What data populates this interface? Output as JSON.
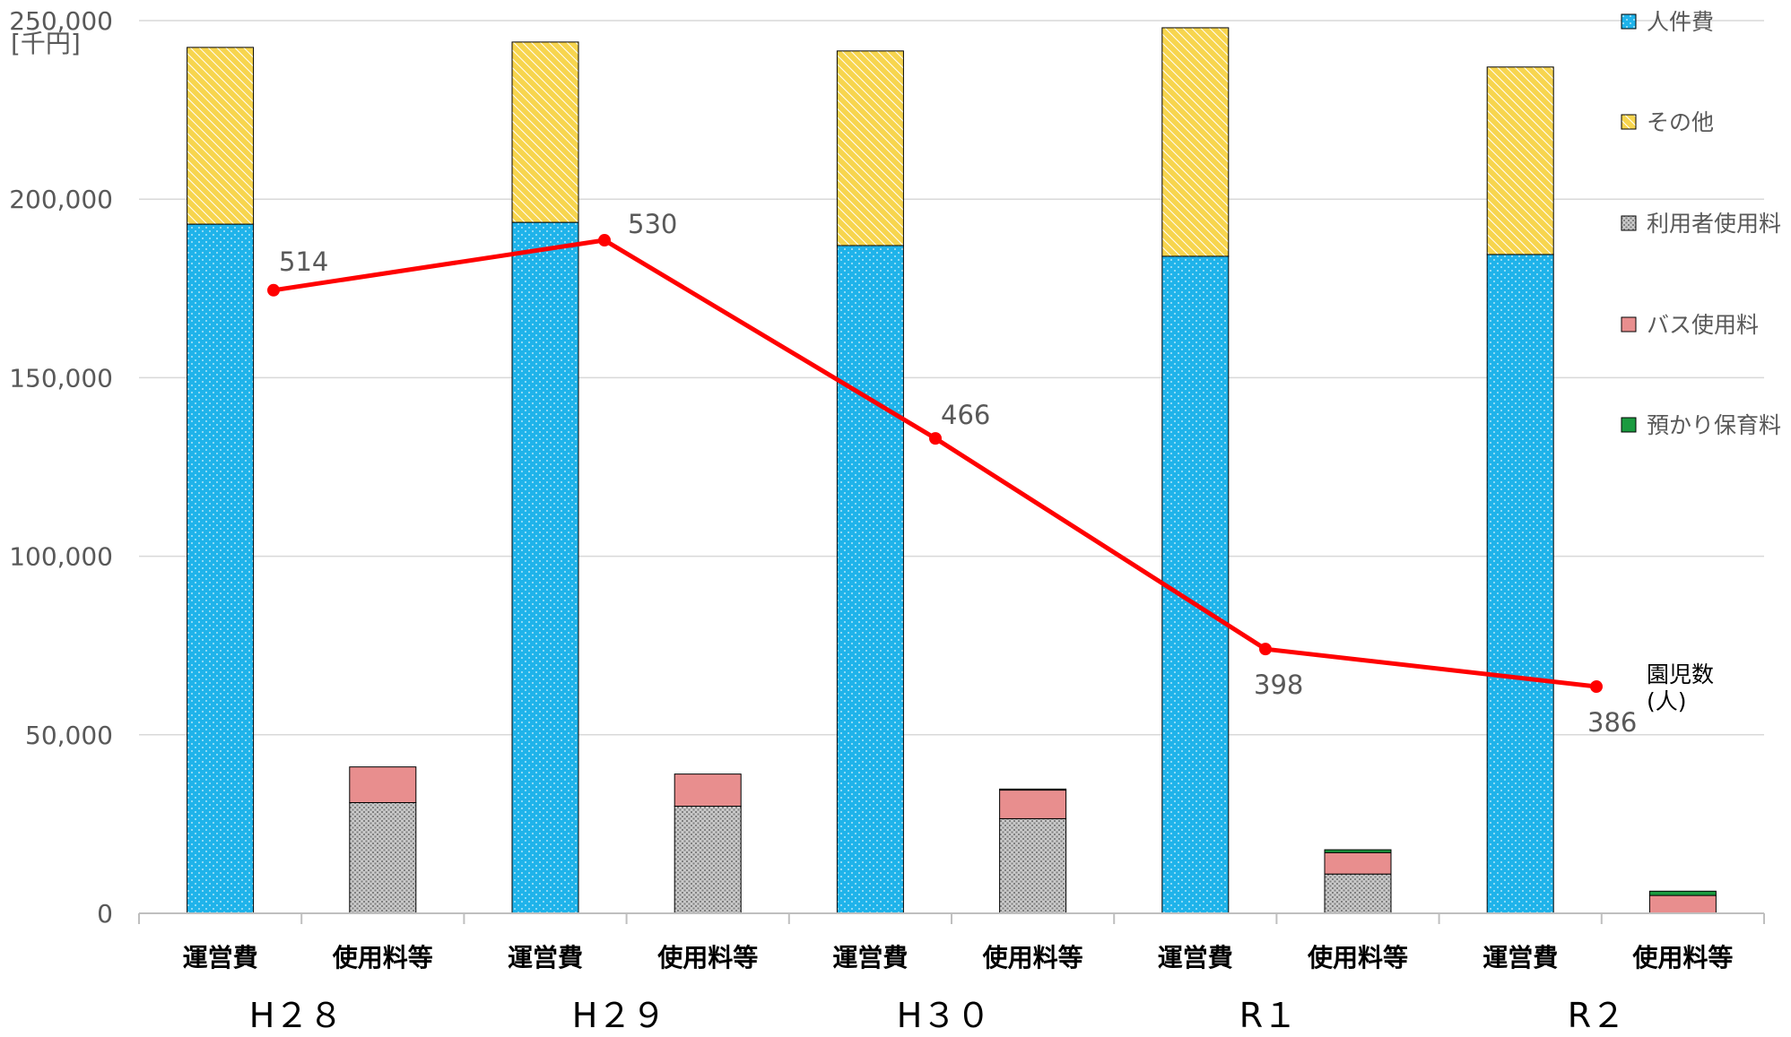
{
  "chart_data": {
    "type": "bar",
    "y_unit": "[千円]",
    "ylim": [
      0,
      250000
    ],
    "yticks": [
      "0",
      "50,000",
      "100,000",
      "150,000",
      "200,000",
      "250,000"
    ],
    "ytick_values": [
      0,
      50000,
      100000,
      150000,
      200000,
      250000
    ],
    "grid": true,
    "years": [
      "H２８",
      "H２９",
      "H３０",
      "R１",
      "R２"
    ],
    "categories": [
      "運営費",
      "使用料等",
      "運営費",
      "使用料等",
      "運営費",
      "使用料等",
      "運営費",
      "使用料等",
      "運営費",
      "使用料等"
    ],
    "series": [
      {
        "name": "人件費",
        "color": "#1fb3ea",
        "pattern": "dots",
        "values": [
          193000,
          0,
          193500,
          0,
          187000,
          0,
          184000,
          0,
          184500,
          0
        ]
      },
      {
        "name": "その他",
        "color": "#f7d54e",
        "pattern": "hatch",
        "values": [
          49500,
          0,
          50500,
          0,
          54500,
          0,
          64000,
          0,
          52500,
          0
        ]
      },
      {
        "name": "利用者使用料",
        "color": "#a6a6a6",
        "pattern": "grid",
        "values": [
          0,
          31000,
          0,
          30000,
          0,
          26500,
          0,
          11000,
          0,
          0
        ]
      },
      {
        "name": "バス使用料",
        "color": "#e88e8e",
        "pattern": "solid",
        "values": [
          0,
          10000,
          0,
          9000,
          0,
          8000,
          0,
          6000,
          0,
          5000
        ]
      },
      {
        "name": "預かり保育料",
        "color": "#1a9a3f",
        "pattern": "solid",
        "values": [
          0,
          0,
          0,
          0,
          0,
          300,
          0,
          800,
          0,
          1200
        ]
      }
    ],
    "line_series": {
      "name": "園児数\n(人)",
      "color": "#ff0000",
      "values": [
        514,
        530,
        466,
        398,
        386
      ],
      "labels": [
        "514",
        "530",
        "466",
        "398",
        "386"
      ],
      "plotted_at_primary_axis": [
        174500,
        188500,
        133000,
        74000,
        63500
      ]
    },
    "legend_position": "right"
  }
}
